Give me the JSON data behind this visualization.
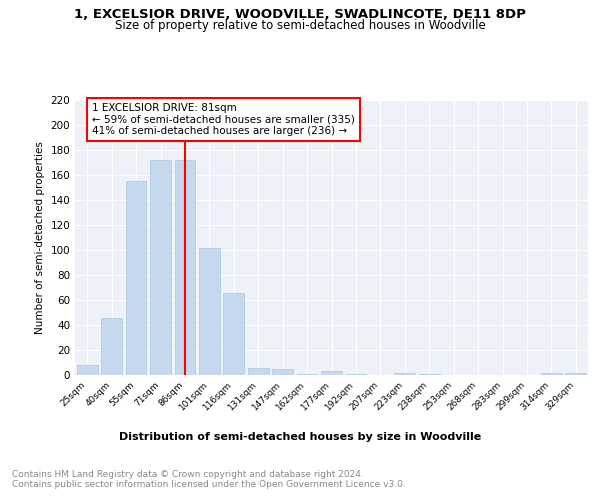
{
  "title": "1, EXCELSIOR DRIVE, WOODVILLE, SWADLINCOTE, DE11 8DP",
  "subtitle": "Size of property relative to semi-detached houses in Woodville",
  "xlabel": "Distribution of semi-detached houses by size in Woodville",
  "ylabel": "Number of semi-detached properties",
  "categories": [
    "25sqm",
    "40sqm",
    "55sqm",
    "71sqm",
    "86sqm",
    "101sqm",
    "116sqm",
    "131sqm",
    "147sqm",
    "162sqm",
    "177sqm",
    "192sqm",
    "207sqm",
    "223sqm",
    "238sqm",
    "253sqm",
    "268sqm",
    "283sqm",
    "299sqm",
    "314sqm",
    "329sqm"
  ],
  "values": [
    8,
    46,
    155,
    172,
    172,
    102,
    66,
    6,
    5,
    1,
    3,
    1,
    0,
    2,
    1,
    0,
    0,
    0,
    0,
    2,
    2
  ],
  "bar_color": "#c5d8ed",
  "bar_edge_color": "#a8c8e0",
  "redline_index": 4,
  "annotation_text": "1 EXCELSIOR DRIVE: 81sqm\n← 59% of semi-detached houses are smaller (335)\n41% of semi-detached houses are larger (236) →",
  "ylim": [
    0,
    220
  ],
  "yticks": [
    0,
    20,
    40,
    60,
    80,
    100,
    120,
    140,
    160,
    180,
    200,
    220
  ],
  "footer_text": "Contains HM Land Registry data © Crown copyright and database right 2024.\nContains public sector information licensed under the Open Government Licence v3.0.",
  "background_color": "#eef2f8",
  "title_fontsize": 9.5,
  "subtitle_fontsize": 8.5,
  "annotation_fontsize": 7.5,
  "footer_fontsize": 6.5,
  "ylabel_fontsize": 7.5,
  "xlabel_fontsize": 8,
  "xtick_fontsize": 6.5,
  "ytick_fontsize": 7.5
}
